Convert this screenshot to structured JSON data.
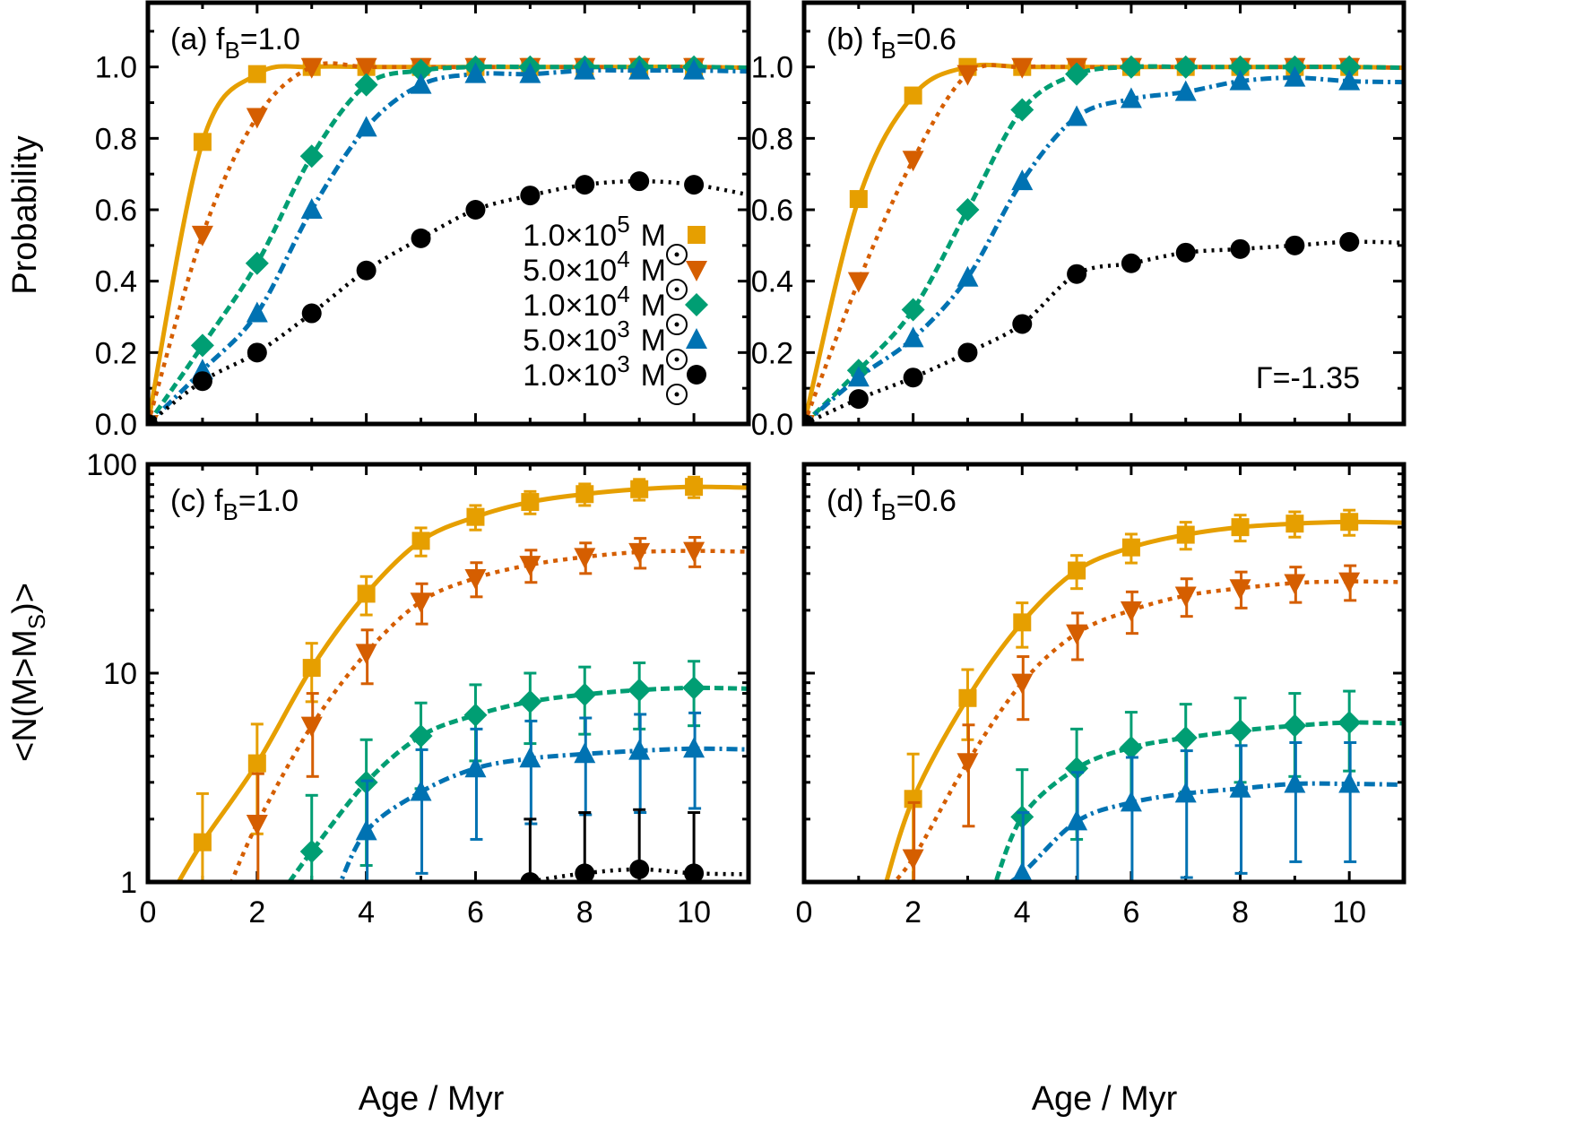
{
  "figure": {
    "x_axis_label": "Age / Myr",
    "top_y_label": "Probability",
    "bottom_y_label": "<N(M>M",
    "bottom_y_label_sub": "S",
    "bottom_y_label_end": ")>",
    "gamma_label": "Γ=-1.35"
  },
  "legend": [
    {
      "mant": "1.0×10",
      "exp": "5",
      "unit": "M",
      "color": "#E69F00",
      "marker": "square"
    },
    {
      "mant": "5.0×10",
      "exp": "4",
      "unit": "M",
      "color": "#D55E00",
      "marker": "triangle-down"
    },
    {
      "mant": "1.0×10",
      "exp": "4",
      "unit": "M",
      "color": "#009E73",
      "marker": "diamond"
    },
    {
      "mant": "5.0×10",
      "exp": "3",
      "unit": "M",
      "color": "#0072B2",
      "marker": "triangle-up"
    },
    {
      "mant": "1.0×10",
      "exp": "3",
      "unit": "M",
      "color": "#000000",
      "marker": "circle"
    }
  ],
  "chart_data": [
    {
      "panel": "(a)",
      "f_label": "f",
      "f_sub": "B",
      "f_value": "=1.0",
      "type": "line",
      "yscale": "linear",
      "xlim": [
        0,
        11
      ],
      "ylim": [
        0,
        1.18
      ],
      "x_ticks": [
        0,
        2,
        4,
        6,
        8,
        10
      ],
      "y_ticks": [
        "0.0",
        "0.2",
        "0.4",
        "0.6",
        "0.8",
        "1.0"
      ],
      "x": [
        0,
        1,
        2,
        3,
        4,
        5,
        6,
        7,
        8,
        9,
        10
      ],
      "series": [
        {
          "name": "1.0×10^5 M_sun",
          "values": [
            0,
            0.79,
            0.98,
            1.0,
            1.0,
            1.0,
            1.0,
            1.0,
            1.0,
            1.0,
            1.0
          ]
        },
        {
          "name": "5.0×10^4 M_sun",
          "values": [
            0,
            0.53,
            0.86,
            1.0,
            1.0,
            1.0,
            1.0,
            1.0,
            1.0,
            1.0,
            1.0
          ]
        },
        {
          "name": "1.0×10^4 M_sun",
          "values": [
            0,
            0.22,
            0.45,
            0.75,
            0.95,
            0.99,
            1.0,
            1.0,
            1.0,
            1.0,
            1.0
          ]
        },
        {
          "name": "5.0×10^3 M_sun",
          "values": [
            0,
            0.15,
            0.31,
            0.6,
            0.83,
            0.95,
            0.98,
            0.98,
            0.99,
            0.99,
            0.99
          ]
        },
        {
          "name": "1.0×10^3 M_sun",
          "values": [
            0,
            0.12,
            0.2,
            0.31,
            0.43,
            0.52,
            0.6,
            0.64,
            0.67,
            0.68,
            0.67
          ]
        }
      ]
    },
    {
      "panel": "(b)",
      "f_label": "f",
      "f_sub": "B",
      "f_value": "=0.6",
      "type": "line",
      "yscale": "linear",
      "xlim": [
        0,
        11
      ],
      "ylim": [
        0,
        1.18
      ],
      "x_ticks": [
        0,
        2,
        4,
        6,
        8,
        10
      ],
      "y_ticks": [
        "0.0",
        "0.2",
        "0.4",
        "0.6",
        "0.8",
        "1.0"
      ],
      "x": [
        0,
        1,
        2,
        3,
        4,
        5,
        6,
        7,
        8,
        9,
        10
      ],
      "series": [
        {
          "name": "1.0×10^5 M_sun",
          "values": [
            0,
            0.63,
            0.92,
            1.0,
            1.0,
            1.0,
            1.0,
            1.0,
            1.0,
            1.0,
            1.0
          ]
        },
        {
          "name": "5.0×10^4 M_sun",
          "values": [
            0,
            0.4,
            0.74,
            0.98,
            1.0,
            1.0,
            1.0,
            1.0,
            1.0,
            1.0,
            1.0
          ]
        },
        {
          "name": "1.0×10^4 M_sun",
          "values": [
            0,
            0.15,
            0.32,
            0.6,
            0.88,
            0.98,
            1.0,
            1.0,
            1.0,
            1.0,
            1.0
          ]
        },
        {
          "name": "5.0×10^3 M_sun",
          "values": [
            0,
            0.13,
            0.24,
            0.41,
            0.68,
            0.86,
            0.91,
            0.93,
            0.96,
            0.97,
            0.96
          ]
        },
        {
          "name": "1.0×10^3 M_sun",
          "values": [
            0,
            0.07,
            0.13,
            0.2,
            0.28,
            0.42,
            0.45,
            0.48,
            0.49,
            0.5,
            0.51
          ]
        }
      ]
    },
    {
      "panel": "(c)",
      "f_label": "f",
      "f_sub": "B",
      "f_value": "=1.0",
      "type": "line",
      "yscale": "log",
      "xlim": [
        0,
        11
      ],
      "ylim": [
        1,
        100
      ],
      "x_ticks": [
        0,
        2,
        4,
        6,
        8,
        10
      ],
      "y_ticks": [
        "1",
        "10",
        "100"
      ],
      "x": [
        0,
        1,
        2,
        3,
        4,
        5,
        6,
        7,
        8,
        9,
        10
      ],
      "series": [
        {
          "name": "1.0×10^5 M_sun",
          "values": [
            null,
            1.55,
            3.7,
            10.6,
            24,
            43,
            56,
            66,
            72,
            76,
            78
          ],
          "errors": [
            null,
            1.1,
            2.0,
            3.3,
            5.0,
            6.6,
            7.5,
            8.1,
            8.5,
            8.7,
            8.8
          ]
        },
        {
          "name": "5.0×10^4 M_sun",
          "values": [
            null,
            null,
            1.9,
            5.6,
            12.5,
            22,
            28.5,
            33,
            36,
            38,
            38.5
          ],
          "errors": [
            null,
            null,
            1.4,
            2.4,
            3.6,
            4.8,
            5.3,
            5.8,
            6.0,
            6.2,
            6.2
          ]
        },
        {
          "name": "1.0×10^4 M_sun",
          "values": [
            null,
            null,
            null,
            1.4,
            3.0,
            5.0,
            6.3,
            7.3,
            7.9,
            8.3,
            8.5
          ],
          "errors": [
            null,
            null,
            null,
            1.2,
            1.8,
            2.2,
            2.5,
            2.7,
            2.8,
            2.9,
            2.9
          ]
        },
        {
          "name": "5.0×10^3 M_sun",
          "values": [
            null,
            null,
            null,
            null,
            1.75,
            2.7,
            3.5,
            3.9,
            4.1,
            4.25,
            4.35
          ],
          "errors": [
            null,
            null,
            null,
            null,
            1.3,
            1.6,
            1.9,
            2.0,
            2.0,
            2.1,
            2.1
          ]
        },
        {
          "name": "1.0×10^3 M_sun",
          "values": [
            null,
            null,
            null,
            null,
            null,
            null,
            null,
            1.0,
            1.1,
            1.15,
            1.1
          ],
          "errors": [
            null,
            null,
            null,
            null,
            null,
            null,
            null,
            1.0,
            1.05,
            1.07,
            1.05
          ]
        }
      ]
    },
    {
      "panel": "(d)",
      "f_label": "f",
      "f_sub": "B",
      "f_value": "=0.6",
      "type": "line",
      "yscale": "log",
      "xlim": [
        0,
        11
      ],
      "ylim": [
        1,
        100
      ],
      "x_ticks": [
        0,
        2,
        4,
        6,
        8,
        10
      ],
      "y_ticks": [],
      "x": [
        0,
        1,
        2,
        3,
        4,
        5,
        6,
        7,
        8,
        9,
        10
      ],
      "series": [
        {
          "name": "1.0×10^5 M_sun",
          "values": [
            null,
            null,
            2.5,
            7.6,
            17.5,
            31,
            40,
            46,
            50,
            52,
            53
          ],
          "errors": [
            null,
            null,
            1.6,
            2.8,
            4.2,
            5.6,
            6.3,
            6.8,
            7.1,
            7.2,
            7.3
          ]
        },
        {
          "name": "5.0×10^4 M_sun",
          "values": [
            null,
            null,
            1.3,
            3.75,
            9.0,
            15.5,
            20,
            23.5,
            25.5,
            27,
            27.5
          ],
          "errors": [
            null,
            null,
            1.1,
            1.9,
            3.0,
            3.9,
            4.5,
            4.8,
            5.0,
            5.2,
            5.2
          ]
        },
        {
          "name": "1.0×10^4 M_sun",
          "values": [
            null,
            null,
            null,
            null,
            2.05,
            3.5,
            4.4,
            4.9,
            5.3,
            5.6,
            5.8
          ],
          "errors": [
            null,
            null,
            null,
            null,
            1.4,
            1.9,
            2.1,
            2.2,
            2.3,
            2.4,
            2.4
          ]
        },
        {
          "name": "5.0×10^3 M_sun",
          "values": [
            null,
            null,
            null,
            null,
            1.1,
            1.95,
            2.4,
            2.65,
            2.8,
            2.95,
            2.95
          ],
          "errors": [
            null,
            null,
            null,
            null,
            1.05,
            1.4,
            1.55,
            1.6,
            1.7,
            1.7,
            1.7
          ]
        },
        {
          "name": "1.0×10^3 M_sun",
          "values": [
            null,
            null,
            null,
            null,
            null,
            null,
            null,
            null,
            null,
            null,
            null
          ],
          "errors": []
        }
      ]
    }
  ]
}
